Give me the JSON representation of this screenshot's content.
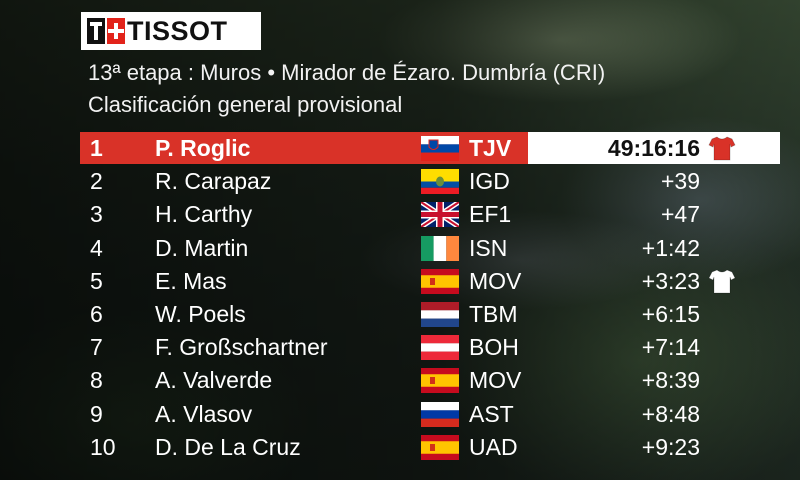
{
  "brand": {
    "logo_text": "TISSOT",
    "mark_letter": "T"
  },
  "title": {
    "line1": "13ª etapa : Muros • Mirador de Ézaro. Dumbría (CRI)",
    "line2": "Clasificación general provisional"
  },
  "standings": [
    {
      "pos": "1",
      "rider": "P. Roglic",
      "flag": "slovenia-flag",
      "team": "TJV",
      "time": "49:16:16",
      "jersey": "red-jersey-icon",
      "leader": true
    },
    {
      "pos": "2",
      "rider": "R. Carapaz",
      "flag": "ecuador-flag",
      "team": "IGD",
      "time": "+39"
    },
    {
      "pos": "3",
      "rider": "H. Carthy",
      "flag": "uk-flag",
      "team": "EF1",
      "time": "+47"
    },
    {
      "pos": "4",
      "rider": "D. Martin",
      "flag": "ireland-flag",
      "team": "ISN",
      "time": "+1:42"
    },
    {
      "pos": "5",
      "rider": "E. Mas",
      "flag": "spain-flag",
      "team": "MOV",
      "time": "+3:23",
      "jersey": "white-jersey-icon"
    },
    {
      "pos": "6",
      "rider": "W. Poels",
      "flag": "netherlands-flag",
      "team": "TBM",
      "time": "+6:15"
    },
    {
      "pos": "7",
      "rider": "F. Großschartner",
      "flag": "austria-flag",
      "team": "BOH",
      "time": "+7:14"
    },
    {
      "pos": "8",
      "rider": "A. Valverde",
      "flag": "spain-flag",
      "team": "MOV",
      "time": "+8:39"
    },
    {
      "pos": "9",
      "rider": "A. Vlasov",
      "flag": "russia-flag",
      "team": "AST",
      "time": "+8:48"
    },
    {
      "pos": "10",
      "rider": "D. De La Cruz",
      "flag": "spain-flag",
      "team": "UAD",
      "time": "+9:23"
    }
  ],
  "colors": {
    "leader_bar": "#d93228",
    "tissot_red": "#e2231a",
    "red_jersey": "#d93228"
  }
}
